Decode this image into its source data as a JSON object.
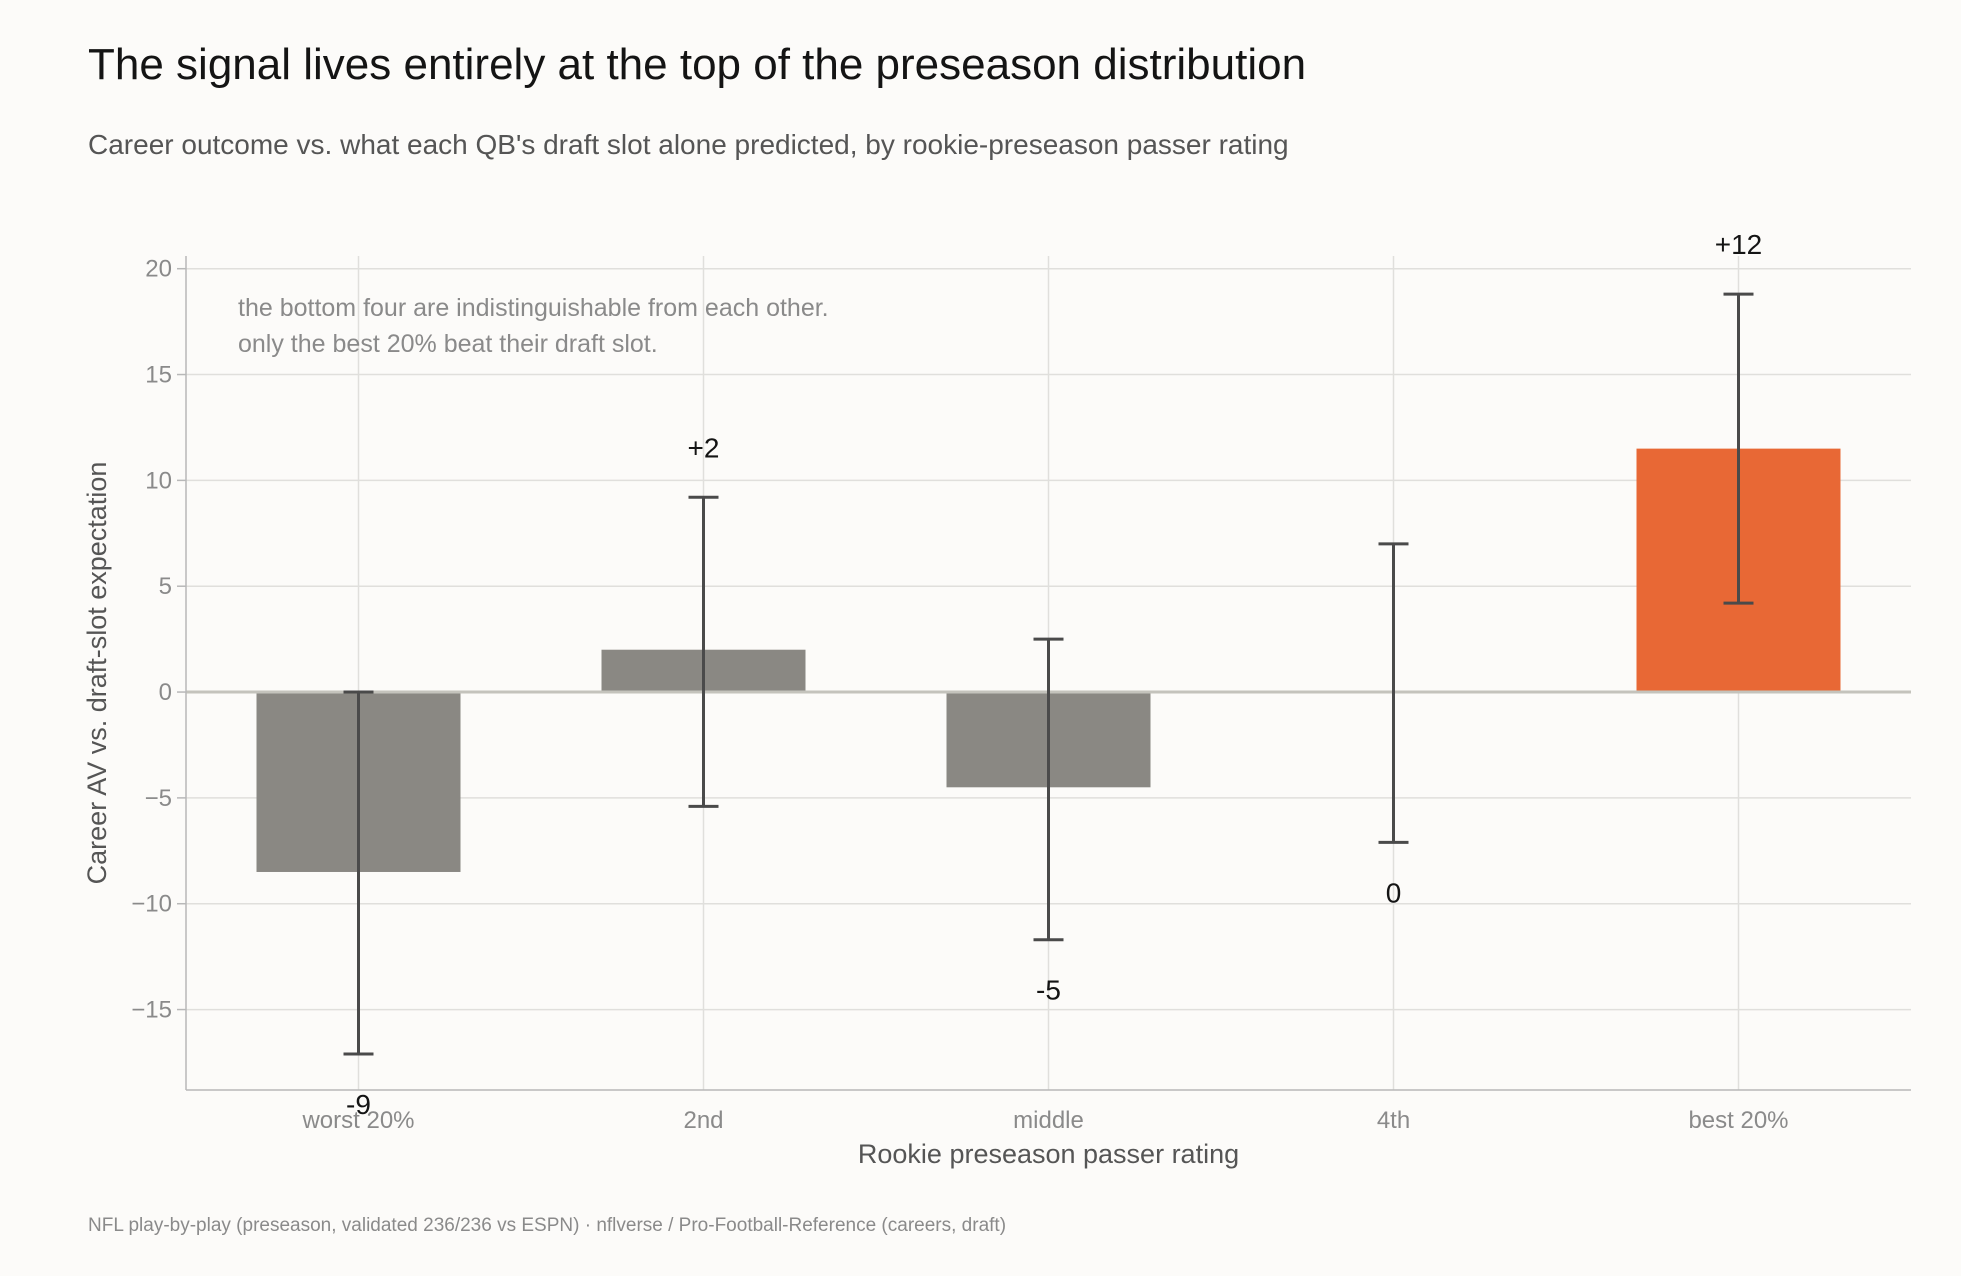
{
  "title": "The signal lives entirely at the top of the preseason distribution",
  "subtitle": "Career outcome vs. what each QB's draft slot alone predicted, by rookie-preseason passer rating",
  "footer": "NFL play-by-play (preseason, validated 236/236 vs ESPN)  ·  nflverse / Pro-Football-Reference (careers, draft)",
  "chart_data": {
    "type": "bar",
    "categories": [
      "worst 20%",
      "2nd",
      "middle",
      "4th",
      "best 20%"
    ],
    "values": [
      -8.5,
      2.0,
      -4.5,
      0.0,
      11.5
    ],
    "value_labels": [
      "-9",
      "+2",
      "-5",
      "0",
      "+12"
    ],
    "error_low": [
      -17.1,
      -5.4,
      -11.7,
      -7.1,
      4.2
    ],
    "error_high": [
      0.0,
      9.2,
      2.5,
      7.0,
      18.8
    ],
    "bar_colors": [
      "#8a8883",
      "#8a8883",
      "#8a8883",
      "#8a8883",
      "#e86835"
    ],
    "xlabel": "Rookie preseason passer rating",
    "ylabel": "Career AV vs. draft-slot expectation",
    "ylim": [
      -18.8,
      20.6
    ],
    "yticks": [
      20,
      15,
      10,
      5,
      0,
      -5,
      -10,
      -15
    ],
    "ytick_labels": [
      "20",
      "15",
      "10",
      "5",
      "0",
      "−5",
      "−10",
      "−15"
    ],
    "grid": true,
    "annotation": [
      "the bottom four are indistinguishable from each other.",
      "only the best 20% beat their draft slot."
    ]
  }
}
